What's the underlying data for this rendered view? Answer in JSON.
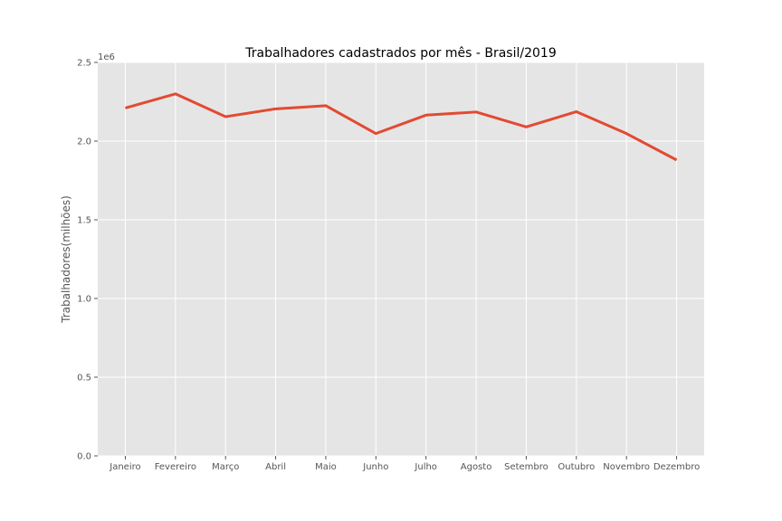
{
  "chart_data": {
    "type": "line",
    "title": "Trabalhadores cadastrados por mês - Brasil/2019",
    "xlabel": "",
    "ylabel": "Trabalhadores(milhões)",
    "y_offset_label": "1e6",
    "categories": [
      "Janeiro",
      "Fevereiro",
      "Março",
      "Abril",
      "Maio",
      "Junho",
      "Julho",
      "Agosto",
      "Setembro",
      "Outubro",
      "Novembro",
      "Dezembro"
    ],
    "series": [
      {
        "values": [
          2210000,
          2300000,
          2155000,
          2205000,
          2225000,
          2048000,
          2165000,
          2185000,
          2090000,
          2187000,
          2048000,
          1880000
        ],
        "color": "#E24A33"
      }
    ],
    "ylim": [
      0,
      2500000
    ],
    "yticks": [
      0,
      500000,
      1000000,
      1500000,
      2000000,
      2500000
    ],
    "ytick_labels": [
      "0.0",
      "0.5",
      "1.0",
      "1.5",
      "2.0",
      "2.5"
    ],
    "grid": true,
    "style": "ggplot",
    "background_color": "#E5E5E5",
    "grid_color": "#FFFFFF"
  }
}
